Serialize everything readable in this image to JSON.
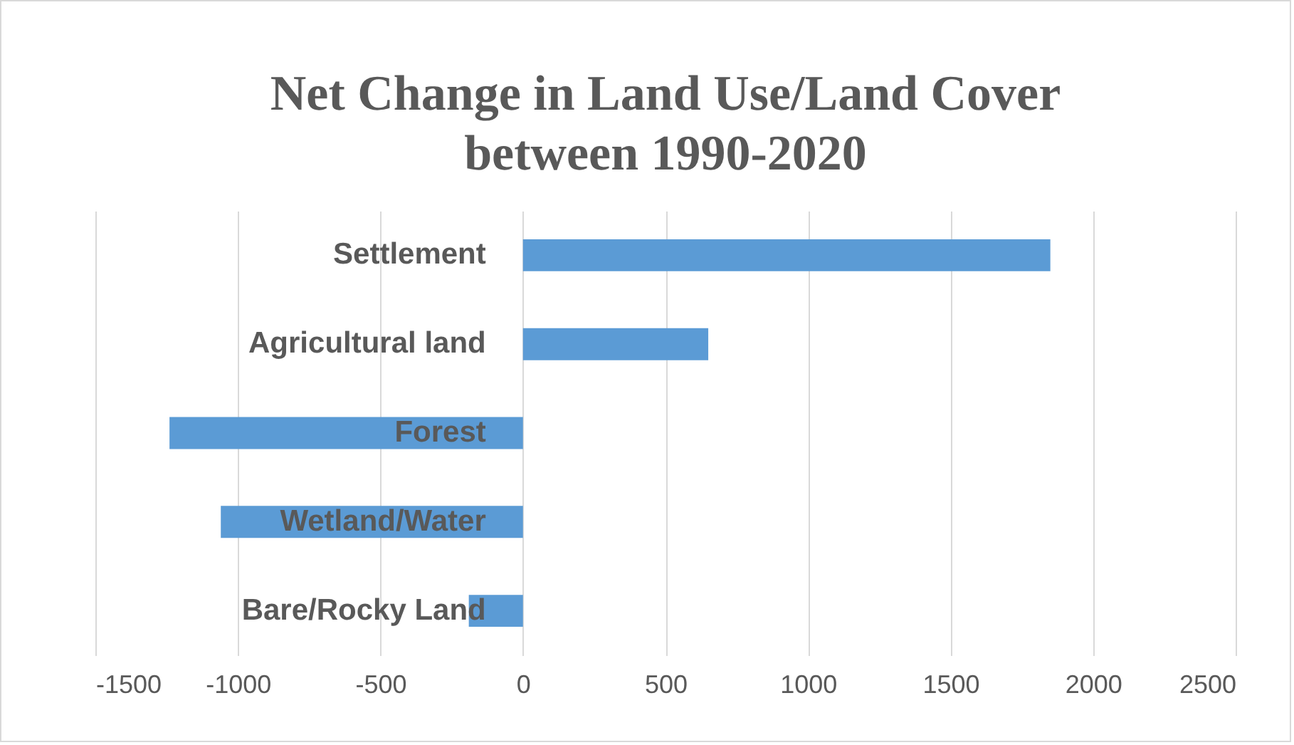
{
  "chart_data": {
    "type": "bar",
    "orientation": "horizontal",
    "title": "Net Change in Land Use/Land Cover\nbetween 1990-2020",
    "categories": [
      "Settlement",
      "Agricultural land",
      "Forest",
      "Wetland/Water",
      "Bare/Rocky Land"
    ],
    "values": [
      1850,
      650,
      -1240,
      -1060,
      -190
    ],
    "color": "#5b9bd5",
    "xlim": [
      -1500,
      2500
    ],
    "xticks": [
      -1500,
      -1000,
      -500,
      0,
      500,
      1000,
      1500,
      2000,
      2500
    ],
    "grid": "x"
  }
}
